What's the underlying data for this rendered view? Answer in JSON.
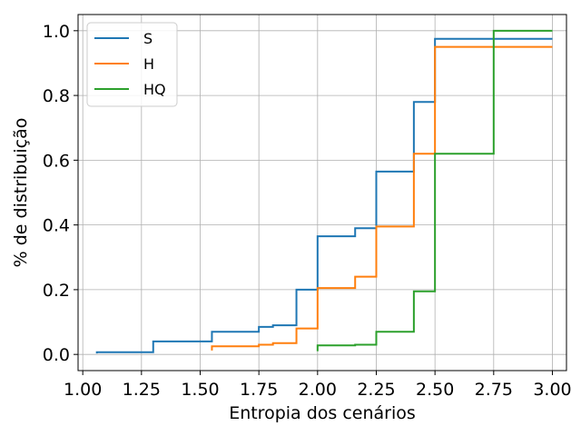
{
  "chart_data": {
    "type": "line",
    "step": true,
    "title": "",
    "xlabel": "Entropia dos cenários",
    "ylabel": "% de distribuição",
    "xlim": [
      0.98,
      3.06
    ],
    "ylim": [
      -0.05,
      1.05
    ],
    "xticks": [
      1.0,
      1.25,
      1.5,
      1.75,
      2.0,
      2.25,
      2.5,
      2.75,
      3.0
    ],
    "xtick_labels": [
      "1.00",
      "1.25",
      "1.50",
      "1.75",
      "2.00",
      "2.25",
      "2.50",
      "2.75",
      "3.00"
    ],
    "yticks": [
      0.0,
      0.2,
      0.4,
      0.6,
      0.8,
      1.0
    ],
    "ytick_labels": [
      "0.0",
      "0.2",
      "0.4",
      "0.6",
      "0.8",
      "1.0"
    ],
    "grid": true,
    "legend_position": "top-left",
    "series": [
      {
        "name": "S",
        "color": "#1f77b4",
        "x": [
          1.06,
          1.3,
          1.55,
          1.75,
          1.81,
          1.91,
          2.0,
          2.16,
          2.25,
          2.41,
          2.5,
          2.75,
          3.0
        ],
        "y": [
          0.003,
          0.007,
          0.04,
          0.07,
          0.085,
          0.09,
          0.2,
          0.365,
          0.39,
          0.565,
          0.78,
          0.975,
          0.975
        ]
      },
      {
        "name": "H",
        "color": "#ff7f0e",
        "x": [
          1.55,
          1.75,
          1.81,
          1.91,
          2.0,
          2.16,
          2.25,
          2.41,
          2.5,
          2.75,
          3.0
        ],
        "y": [
          0.012,
          0.025,
          0.03,
          0.035,
          0.08,
          0.205,
          0.24,
          0.395,
          0.62,
          0.95,
          0.95
        ]
      },
      {
        "name": "HQ",
        "color": "#2ca02c",
        "x": [
          2.0,
          2.16,
          2.25,
          2.41,
          2.5,
          2.75,
          3.0
        ],
        "y": [
          0.01,
          0.028,
          0.03,
          0.07,
          0.195,
          0.62,
          1.0
        ]
      }
    ]
  }
}
